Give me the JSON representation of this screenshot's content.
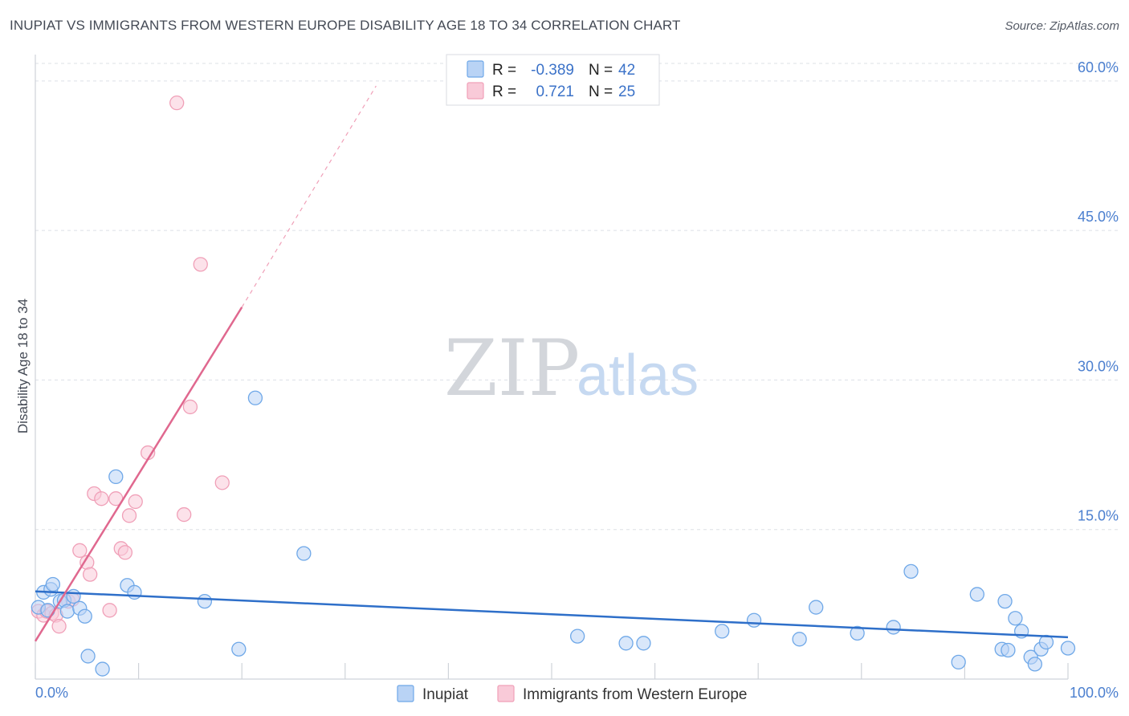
{
  "title": "INUPIAT VS IMMIGRANTS FROM WESTERN EUROPE DISABILITY AGE 18 TO 34 CORRELATION CHART",
  "source": "Source: ZipAtlas.com",
  "watermark": {
    "zip": "ZIP",
    "atlas": "atlas"
  },
  "colors": {
    "inupiat": "#6fa8e8",
    "inupiat_fill": "#b9d3f5",
    "inupiat_line": "#2e6fc9",
    "immigrants": "#f0a0b8",
    "immigrants_fill": "#f9cad8",
    "immigrants_line": "#e0688f",
    "tick_text": "#4b7fcf",
    "grid": "#dde0e6"
  },
  "legend": {
    "rows": [
      {
        "r_label": "R =",
        "r_value": "-0.389",
        "n_label": "N =",
        "n_value": "42"
      },
      {
        "r_label": "R =",
        "r_value": "0.721",
        "n_label": "N =",
        "n_value": "25"
      }
    ]
  },
  "chart_data": {
    "type": "scatter",
    "title": "INUPIAT VS IMMIGRANTS FROM WESTERN EUROPE DISABILITY AGE 18 TO 34 CORRELATION CHART",
    "xlabel": "",
    "ylabel": "Disability Age 18 to 34",
    "xlim": [
      0,
      100
    ],
    "ylim": [
      0,
      62
    ],
    "x_tick_labels": [
      "0.0%",
      "100.0%"
    ],
    "y_ticks": [
      15,
      30,
      45,
      60
    ],
    "y_tick_labels": [
      "15.0%",
      "30.0%",
      "45.0%",
      "60.0%"
    ],
    "grid": true,
    "legend_position": "top-center",
    "series": [
      {
        "name": "Inupiat",
        "R": -0.389,
        "N": 42,
        "trend": {
          "x0": 0,
          "y0": 8.8,
          "x1": 100,
          "y1": 4.2
        },
        "points": [
          [
            0.3,
            7.2
          ],
          [
            0.8,
            8.7
          ],
          [
            1.2,
            6.9
          ],
          [
            1.5,
            9.0
          ],
          [
            1.7,
            9.5
          ],
          [
            2.4,
            7.8
          ],
          [
            2.8,
            7.9
          ],
          [
            3.1,
            6.8
          ],
          [
            3.7,
            8.3
          ],
          [
            4.3,
            7.1
          ],
          [
            4.8,
            6.3
          ],
          [
            5.1,
            2.3
          ],
          [
            6.5,
            1.0
          ],
          [
            7.8,
            20.3
          ],
          [
            8.9,
            9.4
          ],
          [
            9.6,
            8.7
          ],
          [
            16.4,
            7.8
          ],
          [
            19.7,
            3.0
          ],
          [
            21.3,
            28.2
          ],
          [
            26.0,
            12.6
          ],
          [
            52.5,
            4.3
          ],
          [
            57.2,
            3.6
          ],
          [
            58.9,
            3.6
          ],
          [
            66.5,
            4.8
          ],
          [
            69.6,
            5.9
          ],
          [
            74.0,
            4.0
          ],
          [
            75.6,
            7.2
          ],
          [
            79.6,
            4.6
          ],
          [
            83.1,
            5.2
          ],
          [
            84.8,
            10.8
          ],
          [
            89.4,
            1.7
          ],
          [
            91.2,
            8.5
          ],
          [
            93.6,
            3.0
          ],
          [
            93.9,
            7.8
          ],
          [
            94.2,
            2.9
          ],
          [
            94.9,
            6.1
          ],
          [
            95.5,
            4.8
          ],
          [
            96.4,
            2.2
          ],
          [
            96.8,
            1.5
          ],
          [
            97.4,
            3.0
          ],
          [
            97.9,
            3.7
          ],
          [
            100.0,
            3.1
          ]
        ]
      },
      {
        "name": "Immigrants from Western Europe",
        "R": 0.721,
        "N": 25,
        "trend": {
          "x0": 0,
          "y0": 3.8,
          "x1": 20,
          "y1": 37.3,
          "x_ext": 33,
          "y_ext": 59.5
        },
        "points": [
          [
            0.3,
            6.8
          ],
          [
            0.8,
            6.4
          ],
          [
            1.1,
            6.8
          ],
          [
            1.6,
            6.6
          ],
          [
            2.0,
            6.4
          ],
          [
            2.3,
            5.3
          ],
          [
            3.2,
            7.8
          ],
          [
            3.6,
            8.0
          ],
          [
            4.3,
            12.9
          ],
          [
            5.0,
            11.7
          ],
          [
            5.3,
            10.5
          ],
          [
            5.7,
            18.6
          ],
          [
            6.4,
            18.1
          ],
          [
            7.2,
            6.9
          ],
          [
            7.8,
            18.1
          ],
          [
            8.3,
            13.1
          ],
          [
            8.7,
            12.7
          ],
          [
            9.1,
            16.4
          ],
          [
            9.7,
            17.8
          ],
          [
            10.9,
            22.7
          ],
          [
            13.7,
            57.8
          ],
          [
            14.4,
            16.5
          ],
          [
            15.0,
            27.3
          ],
          [
            16.0,
            41.6
          ],
          [
            18.1,
            19.7
          ]
        ]
      }
    ]
  }
}
